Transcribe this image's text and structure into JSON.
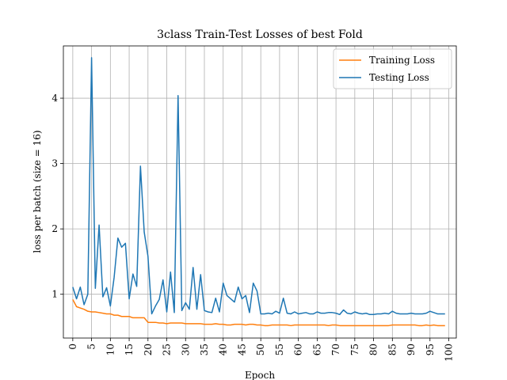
{
  "chart_data": {
    "type": "line",
    "title": "3class Train-Test Losses of best Fold",
    "xlabel": "Epoch",
    "ylabel": "loss per batch (size = 16)",
    "xlim": [
      -2.5,
      102
    ],
    "ylim": [
      0.33,
      4.8
    ],
    "grid": true,
    "legend_position": "top-right",
    "x_ticks": [
      0,
      5,
      10,
      15,
      20,
      25,
      30,
      35,
      40,
      45,
      50,
      55,
      60,
      65,
      70,
      75,
      80,
      85,
      90,
      95,
      100
    ],
    "y_ticks": [
      1,
      2,
      3,
      4
    ],
    "series": [
      {
        "name": "Training Loss",
        "color": "#ff7f0e",
        "x": [
          0,
          1,
          2,
          3,
          4,
          5,
          6,
          7,
          8,
          9,
          10,
          11,
          12,
          13,
          14,
          15,
          16,
          17,
          18,
          19,
          20,
          21,
          22,
          23,
          24,
          25,
          26,
          27,
          28,
          29,
          30,
          31,
          32,
          33,
          34,
          35,
          36,
          37,
          38,
          39,
          40,
          41,
          42,
          43,
          44,
          45,
          46,
          47,
          48,
          49,
          50,
          51,
          52,
          53,
          54,
          55,
          56,
          57,
          58,
          59,
          60,
          61,
          62,
          63,
          64,
          65,
          66,
          67,
          68,
          69,
          70,
          71,
          72,
          73,
          74,
          75,
          76,
          77,
          78,
          79,
          80,
          81,
          82,
          83,
          84,
          85,
          86,
          87,
          88,
          89,
          90,
          91,
          92,
          93,
          94,
          95,
          96,
          97,
          98,
          99
        ],
        "values": [
          0.92,
          0.81,
          0.79,
          0.77,
          0.74,
          0.73,
          0.73,
          0.72,
          0.71,
          0.7,
          0.7,
          0.68,
          0.68,
          0.66,
          0.66,
          0.66,
          0.64,
          0.64,
          0.64,
          0.64,
          0.57,
          0.57,
          0.57,
          0.56,
          0.56,
          0.55,
          0.56,
          0.56,
          0.56,
          0.56,
          0.55,
          0.55,
          0.55,
          0.55,
          0.55,
          0.54,
          0.54,
          0.54,
          0.55,
          0.54,
          0.54,
          0.53,
          0.53,
          0.54,
          0.54,
          0.54,
          0.53,
          0.54,
          0.54,
          0.53,
          0.53,
          0.52,
          0.52,
          0.53,
          0.53,
          0.53,
          0.53,
          0.53,
          0.52,
          0.53,
          0.53,
          0.53,
          0.53,
          0.53,
          0.53,
          0.53,
          0.53,
          0.53,
          0.52,
          0.53,
          0.53,
          0.52,
          0.52,
          0.52,
          0.52,
          0.52,
          0.52,
          0.52,
          0.52,
          0.52,
          0.52,
          0.52,
          0.52,
          0.52,
          0.52,
          0.53,
          0.53,
          0.53,
          0.53,
          0.53,
          0.53,
          0.53,
          0.52,
          0.52,
          0.53,
          0.52,
          0.53,
          0.52,
          0.52,
          0.52
        ]
      },
      {
        "name": "Testing Loss",
        "color": "#1f77b4",
        "x": [
          0,
          1,
          2,
          3,
          4,
          5,
          6,
          7,
          8,
          9,
          10,
          11,
          12,
          13,
          14,
          15,
          16,
          17,
          18,
          19,
          20,
          21,
          22,
          23,
          24,
          25,
          26,
          27,
          28,
          29,
          30,
          31,
          32,
          33,
          34,
          35,
          36,
          37,
          38,
          39,
          40,
          41,
          42,
          43,
          44,
          45,
          46,
          47,
          48,
          49,
          50,
          51,
          52,
          53,
          54,
          55,
          56,
          57,
          58,
          59,
          60,
          61,
          62,
          63,
          64,
          65,
          66,
          67,
          68,
          69,
          70,
          71,
          72,
          73,
          74,
          75,
          76,
          77,
          78,
          79,
          80,
          81,
          82,
          83,
          84,
          85,
          86,
          87,
          88,
          89,
          90,
          91,
          92,
          93,
          94,
          95,
          96,
          97,
          98,
          99
        ],
        "values": [
          1.11,
          0.93,
          1.11,
          0.84,
          1.0,
          4.62,
          1.09,
          2.06,
          0.96,
          1.1,
          0.82,
          1.26,
          1.86,
          1.72,
          1.78,
          0.93,
          1.31,
          1.12,
          2.96,
          1.95,
          1.58,
          0.7,
          0.82,
          0.92,
          1.22,
          0.73,
          1.34,
          0.72,
          4.04,
          0.75,
          0.87,
          0.77,
          1.41,
          0.77,
          1.3,
          0.75,
          0.73,
          0.72,
          0.94,
          0.73,
          1.17,
          0.98,
          0.93,
          0.88,
          1.11,
          0.93,
          0.98,
          0.72,
          1.17,
          1.05,
          0.7,
          0.7,
          0.71,
          0.7,
          0.74,
          0.71,
          0.94,
          0.71,
          0.7,
          0.73,
          0.7,
          0.71,
          0.72,
          0.7,
          0.7,
          0.73,
          0.71,
          0.71,
          0.72,
          0.72,
          0.71,
          0.69,
          0.76,
          0.71,
          0.7,
          0.73,
          0.71,
          0.7,
          0.71,
          0.69,
          0.69,
          0.7,
          0.7,
          0.71,
          0.7,
          0.74,
          0.71,
          0.7,
          0.7,
          0.7,
          0.71,
          0.7,
          0.7,
          0.7,
          0.71,
          0.74,
          0.72,
          0.7,
          0.7,
          0.7
        ]
      }
    ]
  }
}
